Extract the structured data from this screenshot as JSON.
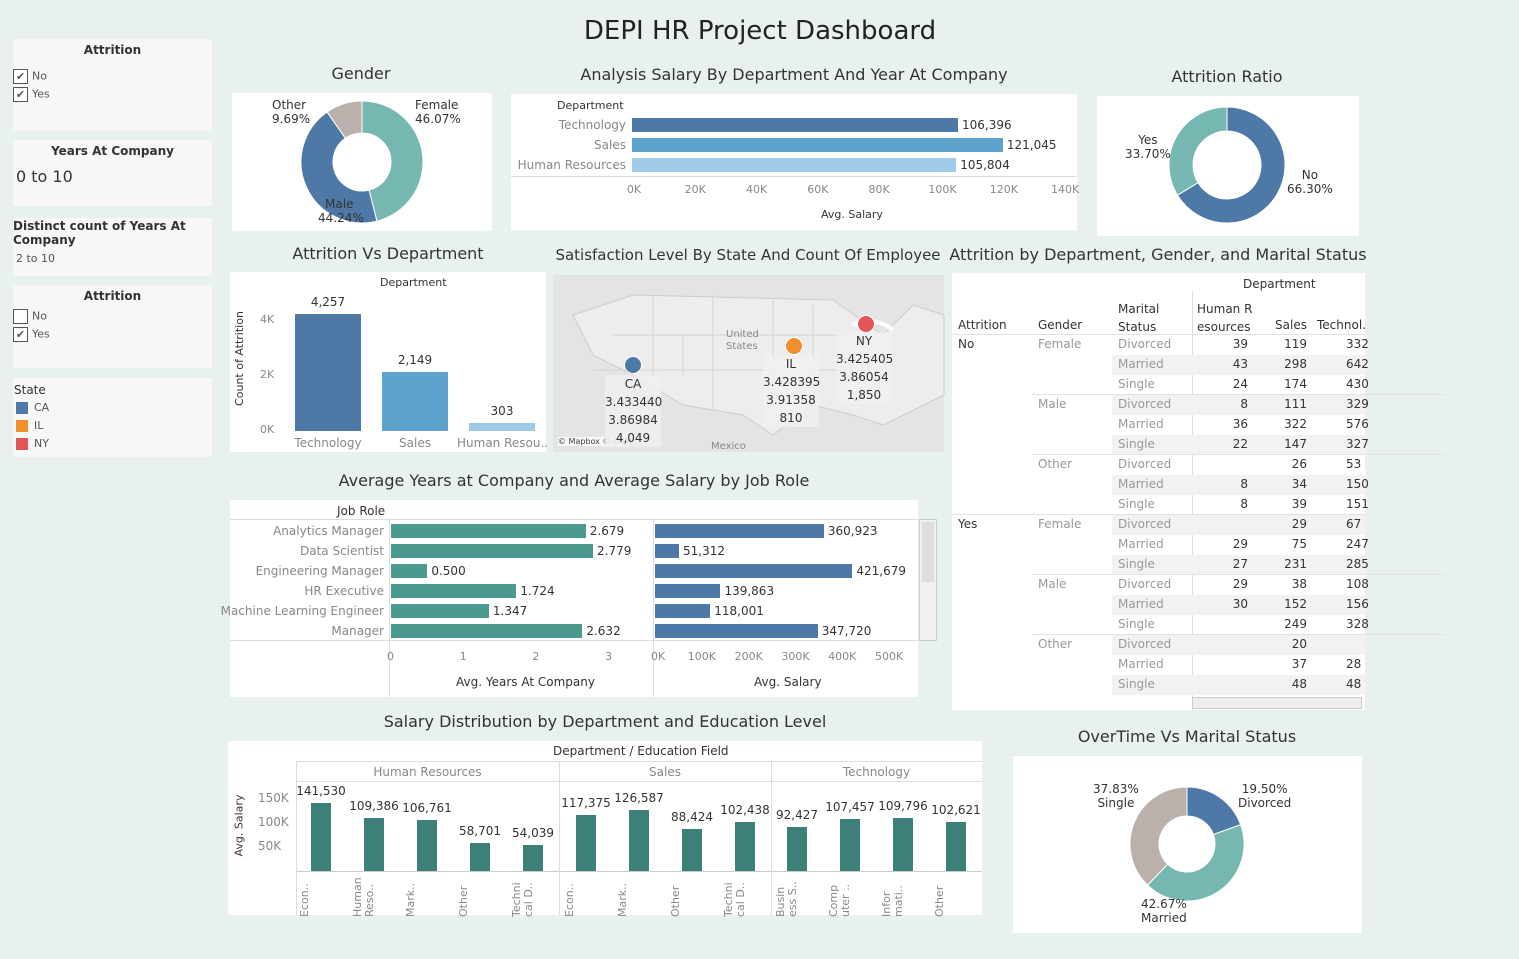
{
  "title": "DEPI HR Project Dashboard",
  "filters": {
    "attrition1": {
      "title": "Attrition",
      "options": [
        {
          "label": "No",
          "checked": true
        },
        {
          "label": "Yes",
          "checked": true
        }
      ]
    },
    "years": {
      "title": "Years At Company",
      "value": "0 to 10"
    },
    "distinct": {
      "title": "Distinct count of Years At Company",
      "value": "2 to 10"
    },
    "attrition2": {
      "title": "Attrition",
      "options": [
        {
          "label": "No",
          "checked": false
        },
        {
          "label": "Yes",
          "checked": true
        }
      ]
    },
    "state": {
      "title": "State",
      "items": [
        {
          "label": "CA",
          "color": "#4e79a7"
        },
        {
          "label": "IL",
          "color": "#f28e2b"
        },
        {
          "label": "NY",
          "color": "#e15759"
        }
      ]
    }
  },
  "gender": {
    "title": "Gender",
    "slices": [
      {
        "label": "Female",
        "pct": "46.07%",
        "value": 46.07,
        "color": "#76b7b2"
      },
      {
        "label": "Male",
        "pct": "44.24%",
        "value": 44.24,
        "color": "#4e79a7"
      },
      {
        "label": "Other",
        "pct": "9.69%",
        "value": 9.69,
        "color": "#bab0ac"
      }
    ]
  },
  "salary_dept": {
    "title": "Analysis Salary By Department  And Year At Company",
    "header": "Department",
    "xlabel": "Avg. Salary",
    "ticks": [
      "0K",
      "20K",
      "40K",
      "60K",
      "80K",
      "100K",
      "120K",
      "140K"
    ],
    "bars": [
      {
        "label": "Technology",
        "value": 106396,
        "text": "106,396",
        "color": "#4e79a7"
      },
      {
        "label": "Sales",
        "value": 121045,
        "text": "121,045",
        "color": "#5fa2ce"
      },
      {
        "label": "Human Resources",
        "value": 105804,
        "text": "105,804",
        "color": "#a0cbe8"
      }
    ]
  },
  "attr_ratio": {
    "title": "Attrition Ratio",
    "slices": [
      {
        "label": "No",
        "pct": "66.30%",
        "value": 66.3,
        "color": "#4e79a7"
      },
      {
        "label": "Yes",
        "pct": "33.70%",
        "value": 33.7,
        "color": "#76b7b2"
      }
    ]
  },
  "attr_dept": {
    "title": "Attrition  Vs Department",
    "header": "Department",
    "ylabel": "Count of Attrition",
    "ticks": [
      "0K",
      "2K",
      "4K"
    ],
    "bars": [
      {
        "label": "Technology",
        "value": 4257,
        "text": "4,257",
        "color": "#4e79a7"
      },
      {
        "label": "Sales",
        "value": 2149,
        "text": "2,149",
        "color": "#5fa2ce"
      },
      {
        "label": "Human Resou..",
        "value": 303,
        "text": "303",
        "color": "#a0cbe8"
      }
    ]
  },
  "map": {
    "title": "Satisfaction Level By State And Count Of Employee",
    "country": "United States",
    "mexico": "Mexico",
    "credit": "© Mapbox © OSM",
    "states": [
      {
        "name": "CA",
        "v1": "3.433440",
        "v2": "3.86984",
        "count": "4,049",
        "color": "#4e79a7"
      },
      {
        "name": "IL",
        "v1": "3.428395",
        "v2": "3.91358",
        "count": "810",
        "color": "#f28e2b"
      },
      {
        "name": "NY",
        "v1": "3.425405",
        "v2": "3.86054",
        "count": "1,850",
        "color": "#e15759"
      }
    ]
  },
  "table": {
    "title": "Attrition by Department, Gender, and Marital Status",
    "header": "Department",
    "cols": [
      "Attrition",
      "Gender",
      "Marital Status",
      "Human R esources",
      "Sales",
      "Technol."
    ],
    "rows": [
      [
        "No",
        "Female",
        "Divorced",
        "39",
        "119",
        "332"
      ],
      [
        "",
        "",
        "Married",
        "43",
        "298",
        "642"
      ],
      [
        "",
        "",
        "Single",
        "24",
        "174",
        "430"
      ],
      [
        "",
        "Male",
        "Divorced",
        "8",
        "111",
        "329"
      ],
      [
        "",
        "",
        "Married",
        "36",
        "322",
        "576"
      ],
      [
        "",
        "",
        "Single",
        "22",
        "147",
        "327"
      ],
      [
        "",
        "Other",
        "Divorced",
        "",
        "26",
        "53"
      ],
      [
        "",
        "",
        "Married",
        "8",
        "34",
        "150"
      ],
      [
        "",
        "",
        "Single",
        "8",
        "39",
        "151"
      ],
      [
        "Yes",
        "Female",
        "Divorced",
        "",
        "29",
        "67"
      ],
      [
        "",
        "",
        "Married",
        "29",
        "75",
        "247"
      ],
      [
        "",
        "",
        "Single",
        "27",
        "231",
        "285"
      ],
      [
        "",
        "Male",
        "Divorced",
        "29",
        "38",
        "108"
      ],
      [
        "",
        "",
        "Married",
        "30",
        "152",
        "156"
      ],
      [
        "",
        "",
        "Single",
        "",
        "249",
        "328"
      ],
      [
        "",
        "Other",
        "Divorced",
        "",
        "20",
        ""
      ],
      [
        "",
        "",
        "Married",
        "",
        "37",
        "28"
      ],
      [
        "",
        "",
        "Single",
        "",
        "48",
        "48"
      ]
    ]
  },
  "jobrole": {
    "title": "Average Years at Company and Average Salary by Job Role",
    "header": "Job Role",
    "xlabel1": "Avg. Years At Company",
    "xlabel2": "Avg. Salary",
    "ticks1": [
      "0",
      "1",
      "2",
      "3"
    ],
    "ticks2": [
      "0K",
      "100K",
      "200K",
      "300K",
      "400K",
      "500K"
    ],
    "color1": "#4a9a8f",
    "color2": "#4e79a7",
    "rows": [
      {
        "role": "Analytics Manager",
        "years": 2.679,
        "ytext": "2.679",
        "salary": 360923,
        "stext": "360,923"
      },
      {
        "role": "Data Scientist",
        "years": 2.779,
        "ytext": "2.779",
        "salary": 51312,
        "stext": "51,312"
      },
      {
        "role": "Engineering Manager",
        "years": 0.5,
        "ytext": "0.500",
        "salary": 421679,
        "stext": "421,679"
      },
      {
        "role": "HR Executive",
        "years": 1.724,
        "ytext": "1.724",
        "salary": 139863,
        "stext": "139,863"
      },
      {
        "role": "Machine Learning Engineer",
        "years": 1.347,
        "ytext": "1.347",
        "salary": 118001,
        "stext": "118,001"
      },
      {
        "role": "Manager",
        "years": 2.632,
        "ytext": "2.632",
        "salary": 347720,
        "stext": "347,720"
      }
    ]
  },
  "saldist": {
    "title": "Salary Distribution by Department and Education Level",
    "header": "Department  /  Education Field",
    "ylabel": "Avg. Salary",
    "ticks": [
      "50K",
      "100K",
      "150K"
    ],
    "color": "#3d8079",
    "groups": [
      "Human Resources",
      "Sales",
      "Technology"
    ],
    "bars": [
      {
        "g": 0,
        "label": "Econ..",
        "value": 141530,
        "text": "141,530"
      },
      {
        "g": 0,
        "label": "Human Reso..",
        "value": 109386,
        "text": "109,386"
      },
      {
        "g": 0,
        "label": "Mark..",
        "value": 106761,
        "text": "106,761"
      },
      {
        "g": 0,
        "label": "Other",
        "value": 58701,
        "text": "58,701"
      },
      {
        "g": 0,
        "label": "Techni cal D..",
        "value": 54039,
        "text": "54,039"
      },
      {
        "g": 1,
        "label": "Econ..",
        "value": 117375,
        "text": "117,375"
      },
      {
        "g": 1,
        "label": "Mark..",
        "value": 126587,
        "text": "126,587"
      },
      {
        "g": 1,
        "label": "Other",
        "value": 88424,
        "text": "88,424"
      },
      {
        "g": 1,
        "label": "Techni cal D..",
        "value": 102438,
        "text": "102,438"
      },
      {
        "g": 2,
        "label": "Busin ess S..",
        "value": 92427,
        "text": "92,427"
      },
      {
        "g": 2,
        "label": "Comp uter ..",
        "value": 107457,
        "text": "107,457"
      },
      {
        "g": 2,
        "label": "Infor mati..",
        "value": 109796,
        "text": "109,796"
      },
      {
        "g": 2,
        "label": "Other",
        "value": 102621,
        "text": "102,621"
      }
    ]
  },
  "overtime": {
    "title": "OverTime Vs Marital Status",
    "slices": [
      {
        "label": "Divorced",
        "pct": "19.50%",
        "value": 19.5,
        "color": "#4e79a7"
      },
      {
        "label": "Married",
        "pct": "42.67%",
        "value": 42.67,
        "color": "#76b7b2"
      },
      {
        "label": "Single",
        "pct": "37.83%",
        "value": 37.83,
        "color": "#bab0ac"
      }
    ]
  }
}
